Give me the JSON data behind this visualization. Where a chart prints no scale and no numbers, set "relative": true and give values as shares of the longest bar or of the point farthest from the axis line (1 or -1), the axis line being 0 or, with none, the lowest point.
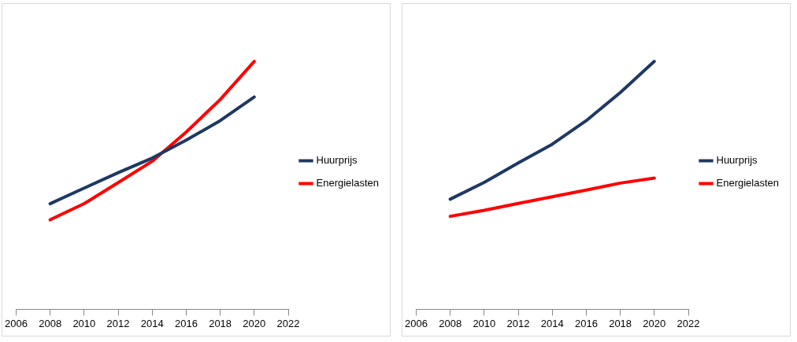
{
  "chart_data": [
    {
      "type": "line",
      "x": [
        2008,
        2010,
        2012,
        2014,
        2016,
        2018,
        2020
      ],
      "xlim": [
        2006,
        2022
      ],
      "xticks": [
        2006,
        2008,
        2010,
        2012,
        2014,
        2016,
        2018,
        2020,
        2022
      ],
      "relative": true,
      "tick_labels": "x",
      "legend": "right",
      "marker": "none",
      "series": [
        {
          "name": "Huurprijs",
          "color": "#1f3864",
          "values": [
            0.426,
            0.489,
            0.551,
            0.61,
            0.682,
            0.761,
            0.856
          ]
        },
        {
          "name": "Energielasten",
          "color": "#ff0000",
          "values": [
            0.361,
            0.426,
            0.511,
            0.597,
            0.715,
            0.846,
            1
          ]
        }
      ]
    },
    {
      "type": "line",
      "x": [
        2008,
        2010,
        2012,
        2014,
        2016,
        2018,
        2020
      ],
      "xlim": [
        2006,
        2022
      ],
      "xticks": [
        2006,
        2008,
        2010,
        2012,
        2014,
        2016,
        2018,
        2020,
        2022
      ],
      "relative": true,
      "tick_labels": "x",
      "legend": "right",
      "marker": "none",
      "series": [
        {
          "name": "Huurprijs",
          "color": "#1f3864",
          "values": [
            0.444,
            0.512,
            0.59,
            0.666,
            0.761,
            0.874,
            1
          ]
        },
        {
          "name": "Energielasten",
          "color": "#ff0000",
          "values": [
            0.375,
            0.399,
            0.427,
            0.454,
            0.481,
            0.509,
            0.529
          ]
        }
      ]
    }
  ]
}
